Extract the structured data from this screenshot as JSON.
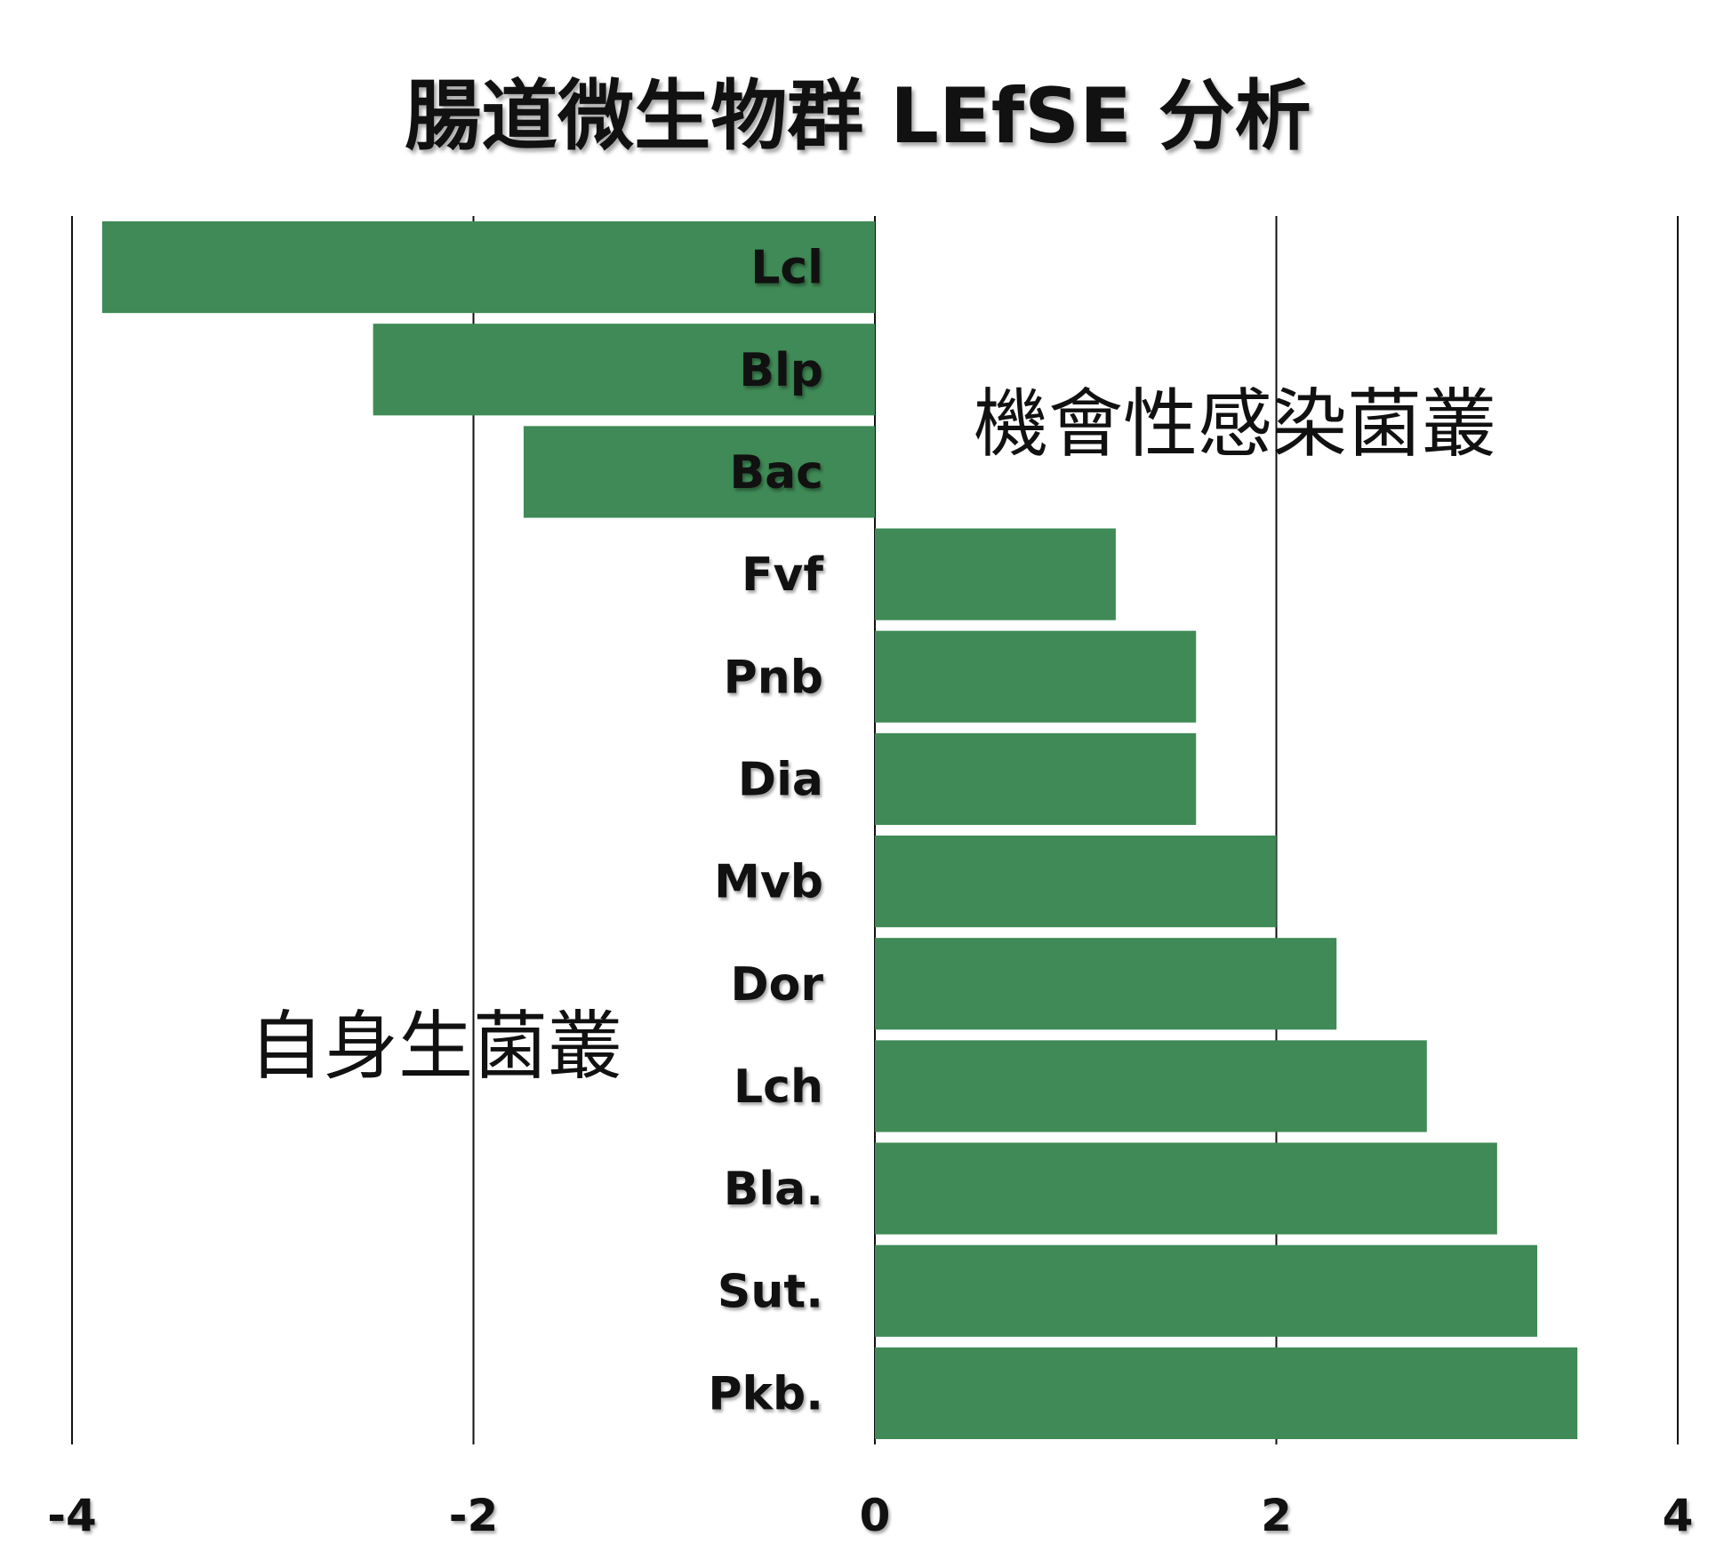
{
  "chart_data": {
    "type": "bar",
    "orientation": "horizontal",
    "title": "腸道微生物群 LEfSE 分析",
    "xlabel": "",
    "ylabel": "",
    "xlim": [
      -4,
      4
    ],
    "xticks": [
      -4,
      -2,
      0,
      2,
      4
    ],
    "grid": true,
    "categories": [
      "Lcl",
      "Blp",
      "Bac",
      "Fvf",
      "Pnb",
      "Dia",
      "Mvb",
      "Dor",
      "Lch",
      "Bla.",
      "Sut.",
      "Pkb."
    ],
    "values": [
      -3.85,
      -2.5,
      -1.75,
      1.2,
      1.6,
      1.6,
      2.0,
      2.3,
      2.75,
      3.1,
      3.3,
      3.5
    ],
    "bar_color": "#3f8a56",
    "annotations": [
      {
        "text": "機會性感染菌叢",
        "side": "positive"
      },
      {
        "text": "自身生菌叢",
        "side": "negative"
      }
    ]
  }
}
